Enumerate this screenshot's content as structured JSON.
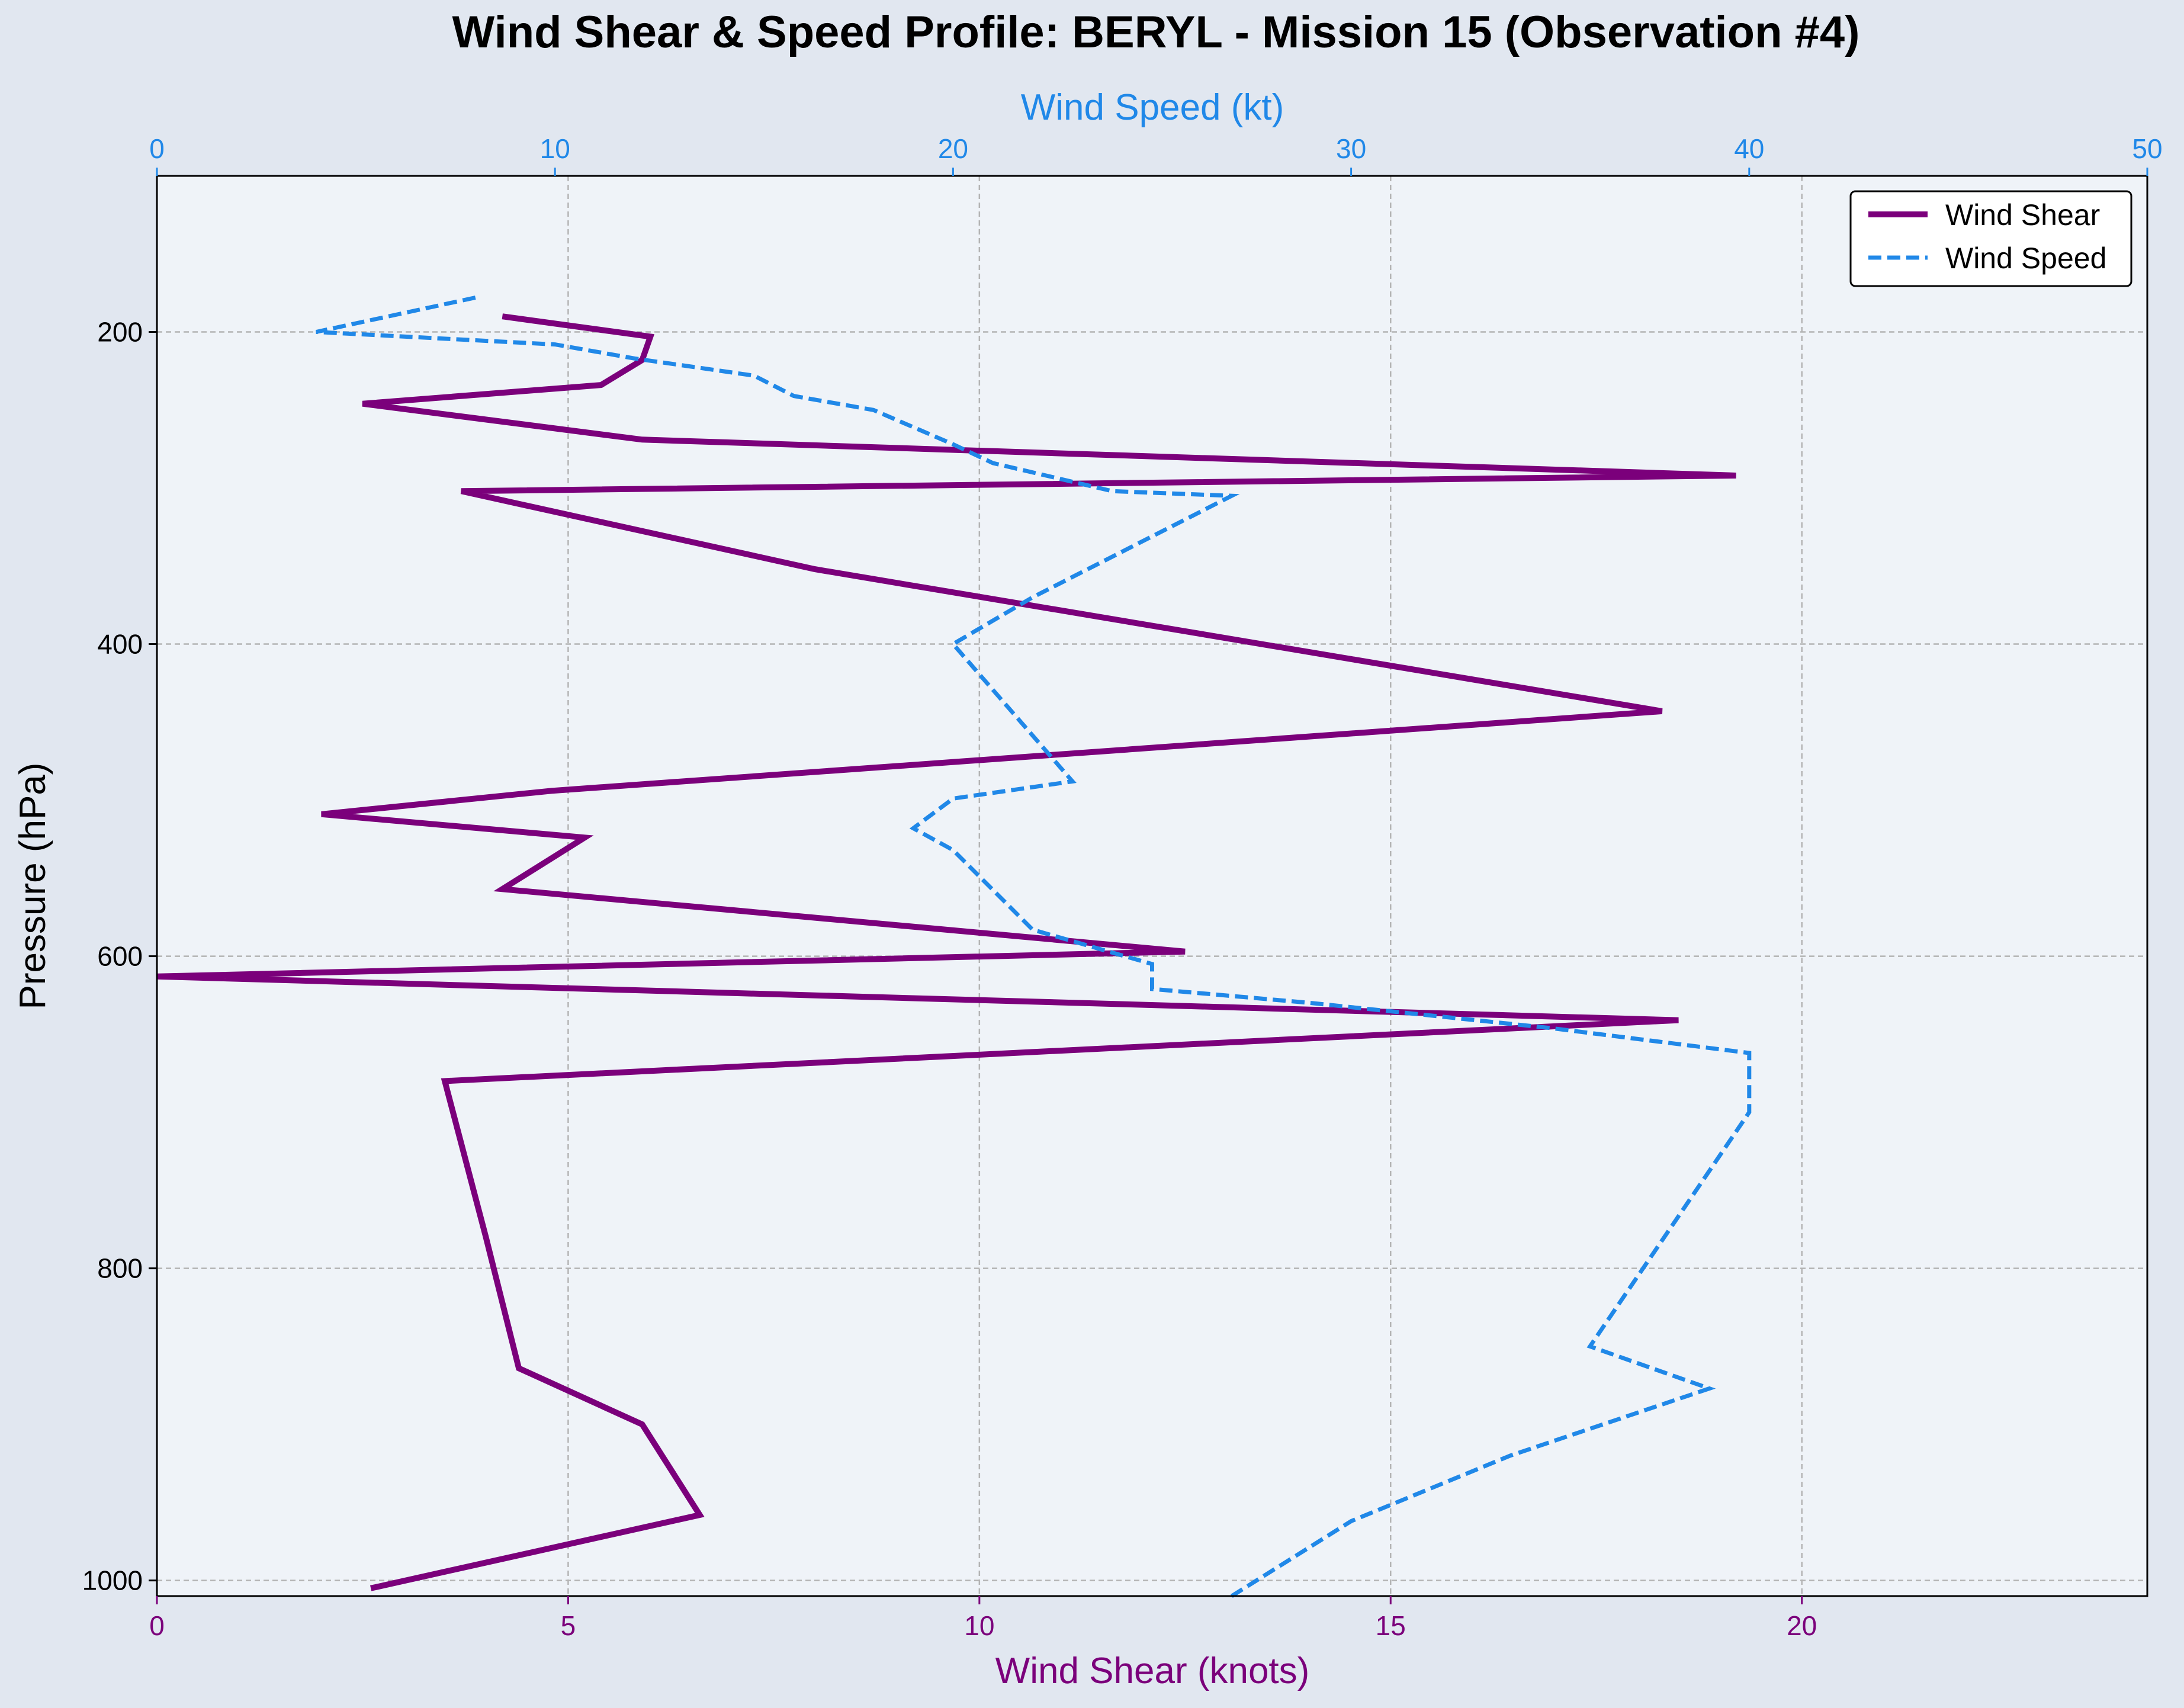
{
  "chart_data": {
    "type": "line",
    "title": "Wind Shear & Speed Profile: BERYL - Mission 15 (Observation #4)",
    "ylabel": "Pressure (hPa)",
    "xlabel_bottom": "Wind Shear (knots)",
    "xlabel_top": "Wind Speed (kt)",
    "y_inverted": true,
    "ylim": [
      1010,
      100
    ],
    "y_ticks": [
      200,
      400,
      600,
      800,
      1000
    ],
    "x_bottom_lim": [
      0,
      24.2
    ],
    "x_bottom_ticks": [
      0,
      5,
      10,
      15,
      20
    ],
    "x_top_lim": [
      0,
      50
    ],
    "x_top_ticks": [
      0,
      10,
      20,
      30,
      40,
      50
    ],
    "grid": true,
    "legend_placement": "top-right",
    "colors": {
      "figure_bg": "#e1e7f0",
      "plot_bg": "#eff3f8",
      "shear": "#7b007b",
      "speed": "#2088e8",
      "grid": "#b4b4b4"
    },
    "series": [
      {
        "name": "Wind Shear",
        "axis": "bottom",
        "color": "#7b007b",
        "style": "solid",
        "points": [
          {
            "shear": 4.2,
            "p": 190
          },
          {
            "shear": 6.0,
            "p": 203
          },
          {
            "shear": 5.9,
            "p": 218
          },
          {
            "shear": 5.4,
            "p": 234
          },
          {
            "shear": 2.5,
            "p": 246
          },
          {
            "shear": 5.9,
            "p": 269
          },
          {
            "shear": 19.2,
            "p": 292
          },
          {
            "shear": 3.7,
            "p": 302
          },
          {
            "shear": 8.0,
            "p": 352
          },
          {
            "shear": 18.3,
            "p": 443
          },
          {
            "shear": 4.8,
            "p": 494
          },
          {
            "shear": 2.0,
            "p": 509
          },
          {
            "shear": 5.2,
            "p": 524
          },
          {
            "shear": 4.2,
            "p": 557
          },
          {
            "shear": 12.5,
            "p": 597
          },
          {
            "shear": 0.0,
            "p": 613
          },
          {
            "shear": 18.5,
            "p": 641
          },
          {
            "shear": 3.5,
            "p": 680
          },
          {
            "shear": 4.0,
            "p": 780
          },
          {
            "shear": 4.4,
            "p": 864
          },
          {
            "shear": 5.9,
            "p": 900
          },
          {
            "shear": 6.6,
            "p": 958
          },
          {
            "shear": 2.6,
            "p": 1005
          }
        ]
      },
      {
        "name": "Wind Speed",
        "axis": "top",
        "color": "#2088e8",
        "style": "dashed",
        "points": [
          {
            "speed": 8.0,
            "p": 178
          },
          {
            "speed": 4.0,
            "p": 200
          },
          {
            "speed": 10.0,
            "p": 208
          },
          {
            "speed": 12.0,
            "p": 217
          },
          {
            "speed": 15.0,
            "p": 228
          },
          {
            "speed": 16.0,
            "p": 241
          },
          {
            "speed": 18.0,
            "p": 250
          },
          {
            "speed": 20.0,
            "p": 272
          },
          {
            "speed": 21.0,
            "p": 284
          },
          {
            "speed": 24.0,
            "p": 302
          },
          {
            "speed": 27.0,
            "p": 305
          },
          {
            "speed": 22.0,
            "p": 370
          },
          {
            "speed": 20.0,
            "p": 400
          },
          {
            "speed": 23.0,
            "p": 488
          },
          {
            "speed": 20.0,
            "p": 499
          },
          {
            "speed": 19.0,
            "p": 518
          },
          {
            "speed": 20.0,
            "p": 532
          },
          {
            "speed": 22.0,
            "p": 583
          },
          {
            "speed": 25.0,
            "p": 605
          },
          {
            "speed": 25.0,
            "p": 621
          },
          {
            "speed": 29.0,
            "p": 630
          },
          {
            "speed": 35.0,
            "p": 646
          },
          {
            "speed": 40.0,
            "p": 662
          },
          {
            "speed": 40.0,
            "p": 700
          },
          {
            "speed": 36.0,
            "p": 850
          },
          {
            "speed": 39.0,
            "p": 877
          },
          {
            "speed": 34.0,
            "p": 920
          },
          {
            "speed": 30.0,
            "p": 962
          },
          {
            "speed": 27.0,
            "p": 1010
          }
        ]
      }
    ]
  }
}
